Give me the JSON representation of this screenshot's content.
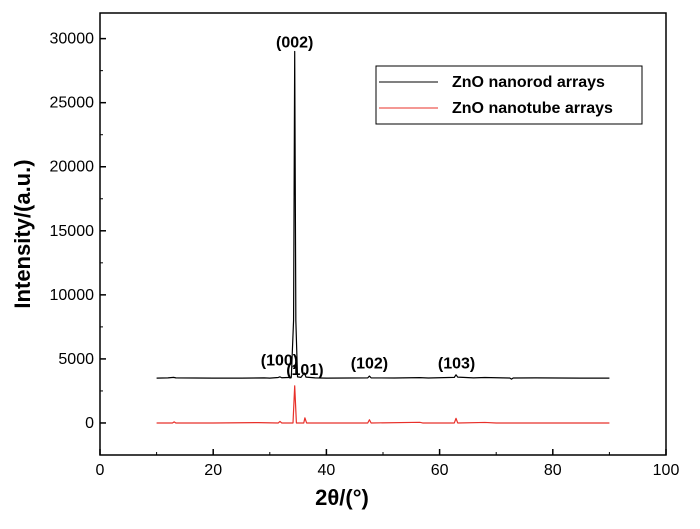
{
  "chart_data": {
    "type": "line",
    "title": "",
    "xlabel": "2θ/(°)",
    "ylabel": "Intensity/(a.u.)",
    "xlim": [
      0,
      100
    ],
    "ylim": [
      -2500,
      32000
    ],
    "xticks": [
      0,
      20,
      40,
      60,
      80,
      100
    ],
    "yticks": [
      0,
      5000,
      10000,
      15000,
      20000,
      25000,
      30000
    ],
    "grid": false,
    "legend": {
      "placement": "top-right"
    },
    "series": [
      {
        "name": "ZnO nanorod arrays",
        "color": "#000000",
        "points": [
          [
            10,
            3500
          ],
          [
            12,
            3520
          ],
          [
            13,
            3560
          ],
          [
            13.4,
            3520
          ],
          [
            20,
            3500
          ],
          [
            25,
            3500
          ],
          [
            29,
            3520
          ],
          [
            30,
            3500
          ],
          [
            31.5,
            3550
          ],
          [
            31.8,
            3600
          ],
          [
            32.1,
            3530
          ],
          [
            33.8,
            3560
          ],
          [
            34.2,
            8000
          ],
          [
            34.4,
            29000
          ],
          [
            34.6,
            8000
          ],
          [
            34.9,
            3600
          ],
          [
            35.5,
            3560
          ],
          [
            36.1,
            3900
          ],
          [
            36.4,
            3580
          ],
          [
            38,
            3520
          ],
          [
            40,
            3500
          ],
          [
            44,
            3510
          ],
          [
            47.3,
            3520
          ],
          [
            47.6,
            3660
          ],
          [
            47.9,
            3520
          ],
          [
            52,
            3510
          ],
          [
            56.5,
            3540
          ],
          [
            58,
            3510
          ],
          [
            62.6,
            3560
          ],
          [
            62.9,
            3760
          ],
          [
            63.2,
            3580
          ],
          [
            66,
            3520
          ],
          [
            68,
            3550
          ],
          [
            72.4,
            3510
          ],
          [
            72.7,
            3420
          ],
          [
            73,
            3510
          ],
          [
            77,
            3520
          ],
          [
            85,
            3500
          ],
          [
            90,
            3500
          ]
        ]
      },
      {
        "name": "ZnO nanotube arrays",
        "color": "#e8302a",
        "points": [
          [
            10,
            0
          ],
          [
            12.8,
            0
          ],
          [
            13.1,
            90
          ],
          [
            13.4,
            0
          ],
          [
            20,
            0
          ],
          [
            28,
            30
          ],
          [
            31.5,
            0
          ],
          [
            31.8,
            120
          ],
          [
            32.1,
            0
          ],
          [
            34.1,
            0
          ],
          [
            34.4,
            2900
          ],
          [
            34.7,
            0
          ],
          [
            36,
            0
          ],
          [
            36.2,
            400
          ],
          [
            36.5,
            0
          ],
          [
            40,
            0
          ],
          [
            47.3,
            0
          ],
          [
            47.6,
            250
          ],
          [
            47.9,
            0
          ],
          [
            56.5,
            50
          ],
          [
            57,
            0
          ],
          [
            62.6,
            0
          ],
          [
            62.9,
            360
          ],
          [
            63.2,
            0
          ],
          [
            68,
            40
          ],
          [
            70,
            0
          ],
          [
            90,
            0
          ]
        ]
      }
    ],
    "annotations": [
      {
        "text": "(002)",
        "x": 34.4,
        "y": 29300
      },
      {
        "text": "(100)",
        "x": 31.7,
        "y": 4500
      },
      {
        "text": "(101)",
        "x": 36.2,
        "y": 3750
      },
      {
        "text": "(102)",
        "x": 47.6,
        "y": 4250
      },
      {
        "text": "(103)",
        "x": 63.0,
        "y": 4250
      }
    ]
  }
}
